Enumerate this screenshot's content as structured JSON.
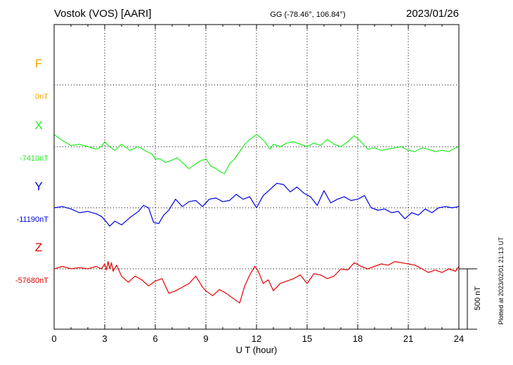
{
  "header": {
    "station": "Vostok (VOS)  [AARI]",
    "coords": "GG (-78.46°, 106.84°)",
    "date": "2023/01/26"
  },
  "footnote": "Plotted at 2023/02/01 21:13 UT",
  "chart_data": {
    "type": "line",
    "xlabel": "U T (hour)",
    "xlim": [
      0,
      24
    ],
    "xticks": [
      0,
      3,
      6,
      9,
      12,
      15,
      18,
      21,
      24
    ],
    "xtick_labels": [
      "0",
      "3",
      "6",
      "9",
      "12",
      "15",
      "18",
      "21",
      "24"
    ],
    "scale_bar": {
      "value": 500,
      "label": "500 nT"
    },
    "grid": true,
    "series": [
      {
        "name": "F",
        "baseline_label": "0nT",
        "color": "#f5a800",
        "x": [],
        "y": []
      },
      {
        "name": "X",
        "baseline_label": "-7410nT",
        "color": "#22ee22",
        "x": [
          0,
          0.5,
          1,
          1.5,
          2,
          2.5,
          2.8,
          3,
          3.3,
          3.6,
          4,
          4.5,
          5,
          5.5,
          5.8,
          6,
          6.3,
          6.6,
          7,
          7.3,
          7.6,
          8,
          8.3,
          8.6,
          9,
          9.3,
          9.6,
          9.9,
          10.1,
          10.4,
          10.7,
          11,
          11.3,
          11.6,
          12,
          12.2,
          12.5,
          12.8,
          13,
          13.4,
          13.8,
          14.2,
          14.6,
          15,
          15.4,
          15.8,
          16.2,
          16.6,
          17,
          17.4,
          17.8,
          18.2,
          18.6,
          19,
          19.4,
          19.8,
          20.2,
          20.6,
          21,
          21.4,
          21.8,
          22.2,
          22.6,
          23,
          23.4,
          23.8,
          24
        ],
        "y": [
          100,
          50,
          10,
          20,
          0,
          -20,
          0,
          40,
          0,
          -30,
          20,
          -30,
          0,
          -40,
          -60,
          -100,
          -100,
          -130,
          -110,
          -90,
          -130,
          -180,
          -150,
          -120,
          -100,
          -160,
          -180,
          -210,
          -220,
          -140,
          -100,
          -40,
          20,
          60,
          100,
          80,
          40,
          -20,
          20,
          0,
          30,
          40,
          20,
          0,
          30,
          10,
          60,
          20,
          0,
          40,
          90,
          40,
          -20,
          -10,
          -30,
          -20,
          -10,
          0,
          -30,
          -40,
          -10,
          -20,
          -40,
          -30,
          -40,
          -10,
          0
        ]
      },
      {
        "name": "Y",
        "baseline_label": "-11190nT",
        "color": "#0000e6",
        "x": [
          0,
          0.5,
          1,
          1.5,
          2,
          2.5,
          2.8,
          3,
          3.3,
          3.6,
          4,
          4.5,
          5,
          5.3,
          5.6,
          5.9,
          6.2,
          6.5,
          6.8,
          7.2,
          7.6,
          8,
          8.4,
          8.8,
          9.2,
          9.6,
          10,
          10.4,
          10.8,
          11.2,
          11.6,
          12,
          12.4,
          12.8,
          13.2,
          13.6,
          14,
          14.4,
          14.8,
          15.2,
          15.6,
          16,
          16.4,
          16.8,
          17.2,
          17.6,
          18,
          18.4,
          18.8,
          19.2,
          19.6,
          20,
          20.4,
          20.8,
          21.2,
          21.6,
          22,
          22.4,
          22.8,
          23.2,
          23.6,
          24
        ],
        "y": [
          0,
          10,
          -10,
          -40,
          -30,
          -50,
          -70,
          -100,
          -150,
          -110,
          -140,
          -80,
          -30,
          20,
          0,
          -120,
          -130,
          -60,
          -20,
          70,
          10,
          50,
          60,
          10,
          70,
          80,
          50,
          60,
          110,
          70,
          90,
          0,
          100,
          150,
          200,
          190,
          130,
          170,
          120,
          90,
          20,
          140,
          40,
          70,
          90,
          60,
          70,
          100,
          0,
          -20,
          -10,
          -40,
          -30,
          -90,
          -40,
          -60,
          -10,
          -40,
          0,
          10,
          0,
          10
        ]
      },
      {
        "name": "Z",
        "baseline_label": "-57680nT",
        "color": "#e60000",
        "x": [
          0,
          0.5,
          1,
          1.5,
          2,
          2.5,
          2.8,
          3,
          3.1,
          3.2,
          3.3,
          3.4,
          3.5,
          3.7,
          4,
          4.4,
          4.8,
          5.2,
          5.6,
          6,
          6.4,
          6.8,
          7.2,
          7.6,
          8,
          8.4,
          8.8,
          9,
          9.4,
          9.8,
          10.2,
          10.6,
          11,
          11.3,
          11.6,
          11.9,
          12.1,
          12.4,
          12.7,
          13,
          13.4,
          13.8,
          14.2,
          14.6,
          15,
          15.4,
          15.8,
          16.2,
          16.6,
          17,
          17.4,
          17.8,
          18.2,
          18.6,
          19,
          19.4,
          19.8,
          20.2,
          20.6,
          21,
          21.4,
          21.8,
          22.2,
          22.6,
          23,
          23.4,
          23.8,
          24
        ],
        "y": [
          0,
          20,
          0,
          10,
          0,
          20,
          0,
          40,
          -10,
          60,
          0,
          50,
          -20,
          30,
          -60,
          -110,
          -60,
          -90,
          -140,
          -100,
          -80,
          -200,
          -180,
          -150,
          -120,
          -60,
          -150,
          -180,
          -220,
          -170,
          -200,
          -240,
          -280,
          -140,
          -50,
          20,
          -20,
          -120,
          -90,
          -180,
          -120,
          -100,
          -80,
          -50,
          -120,
          -40,
          -50,
          -80,
          -60,
          0,
          -10,
          50,
          20,
          0,
          20,
          40,
          30,
          60,
          50,
          40,
          30,
          0,
          -30,
          -10,
          -30,
          0,
          -20,
          20
        ]
      }
    ]
  }
}
